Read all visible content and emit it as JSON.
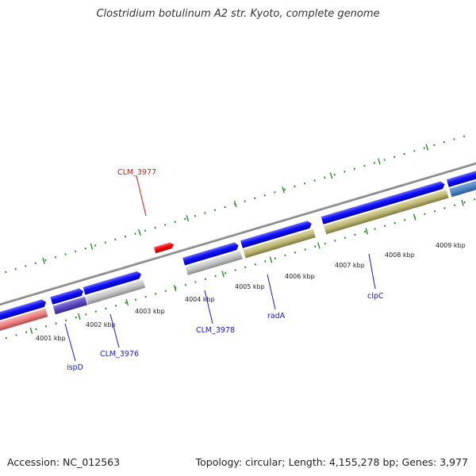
{
  "title": "Clostridium botulinum A2 str. Kyoto, complete genome",
  "footer": {
    "accession": "Accession: NC_012563",
    "summary": "Topology: circular; Length: 4,155,278 bp; Genes: 3,977"
  },
  "colors": {
    "forward_strand": "#1a1aff",
    "reverse_strand_grey": "#c8c8c8",
    "olive": "#c2bd7a",
    "pink": "#f08a8a",
    "purple": "#6a5acd",
    "steel_blue": "#4f86c6",
    "highlight_red": "#ff1010",
    "backbone": "#8a8a8a",
    "ticks": "#2a8a2a",
    "label_blue": "#1a1acc",
    "label_red": "#cc1a1a"
  },
  "ticks": [
    "4001 kbp",
    "4002 kbp",
    "4003 kbp",
    "4004 kbp",
    "4005 kbp",
    "4006 kbp",
    "4007 kbp",
    "4008 kbp",
    "4009 kbp"
  ],
  "gene_labels": [
    {
      "name": "CLM_3977",
      "color": "red"
    },
    {
      "name": "ispD",
      "color": "blue"
    },
    {
      "name": "CLM_3976",
      "color": "blue"
    },
    {
      "name": "CLM_3978",
      "color": "blue"
    },
    {
      "name": "radA",
      "color": "blue"
    },
    {
      "name": "clpC",
      "color": "blue"
    }
  ]
}
